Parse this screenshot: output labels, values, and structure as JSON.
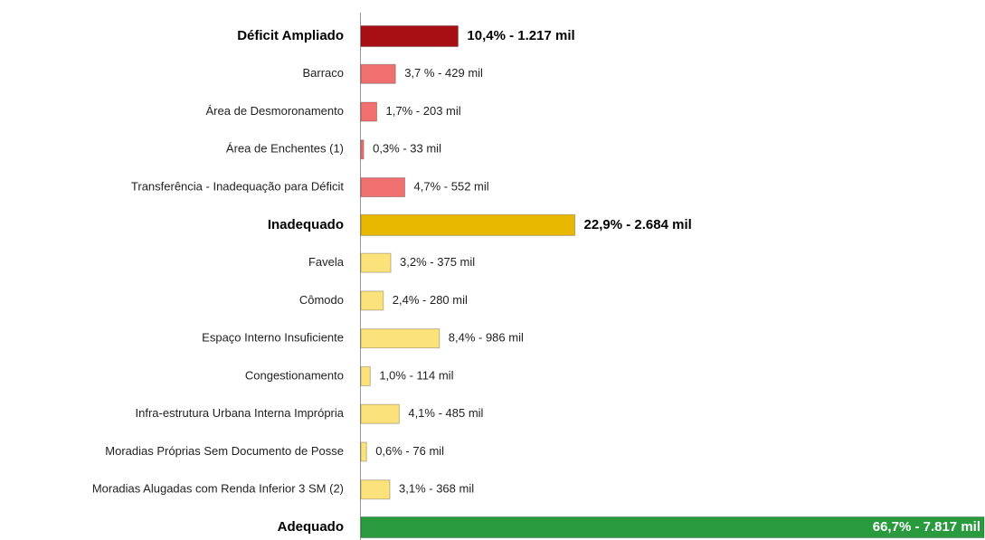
{
  "chart_data": {
    "type": "hbar",
    "categories": [
      "Déficit Ampliado",
      "Barraco",
      "Área de Desmoronamento",
      "Área de Enchentes (1)",
      "Transferência - Inadequação para Déficit",
      "Inadequado",
      "Favela",
      "Cômodo",
      "Espaço Interno Insuficiente",
      "Congestionamento",
      "Infra-estrutura Urbana Interna Imprópria",
      "Moradias Próprias Sem Documento de Posse",
      "Moradias Alugadas com Renda Inferior 3 SM (2)",
      "Adequado"
    ],
    "values": [
      10.4,
      3.7,
      1.7,
      0.3,
      4.7,
      22.9,
      3.2,
      2.4,
      8.4,
      1.0,
      4.1,
      0.6,
      3.1,
      66.7
    ],
    "value_labels": [
      "10,4% - 1.217 mil",
      "3,7 % - 429 mil",
      "1,7% - 203 mil",
      "0,3% - 33 mil",
      "4,7% - 552 mil",
      "22,9% - 2.684 mil",
      "3,2% - 375 mil",
      "2,4% - 280 mil",
      "8,4% - 986 mil",
      "1,0% - 114 mil",
      "4,1% - 485 mil",
      "0,6% - 76 mil",
      "3,1% - 368 mil",
      "66,7% - 7.817 mil"
    ],
    "colors": [
      "#a80f14",
      "#f07070",
      "#f07070",
      "#f07070",
      "#f07070",
      "#e8b800",
      "#fbe27a",
      "#fbe27a",
      "#fbe27a",
      "#fbe27a",
      "#fbe27a",
      "#fbe27a",
      "#fbe27a",
      "#2a9a3e"
    ],
    "emphasis": [
      true,
      false,
      false,
      false,
      false,
      true,
      false,
      false,
      false,
      false,
      false,
      false,
      false,
      true
    ],
    "xlim": [
      0,
      66.7
    ]
  }
}
